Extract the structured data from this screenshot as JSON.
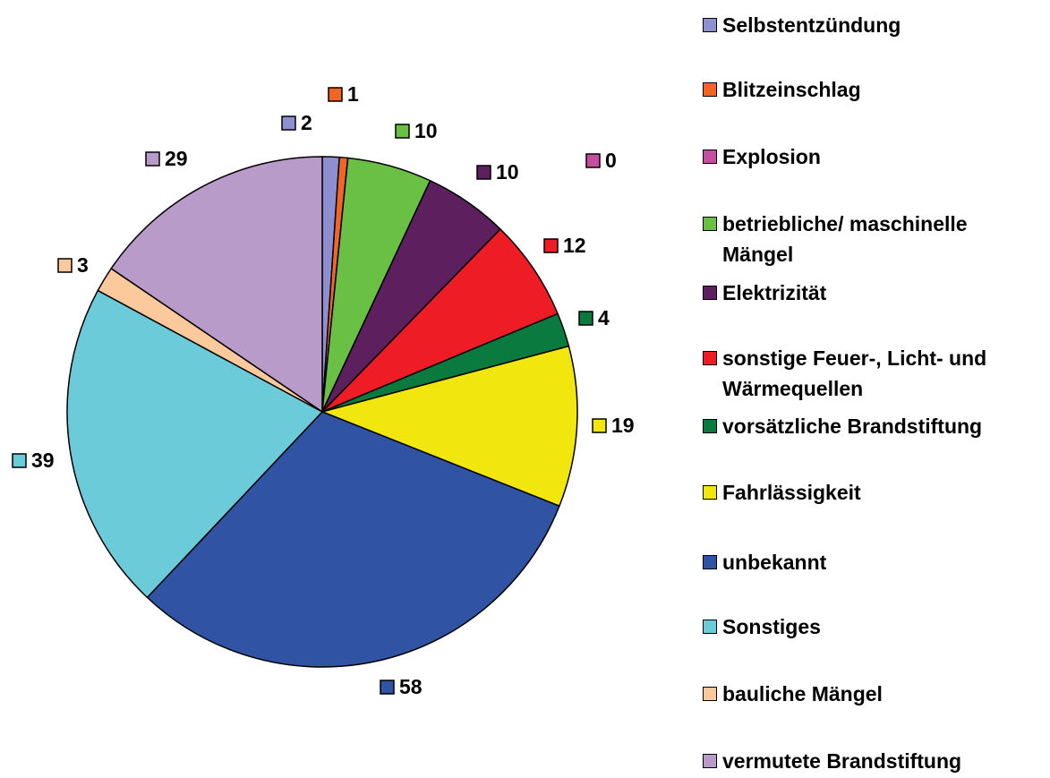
{
  "chart_data": {
    "type": "pie",
    "categories": [
      "Selbstentzündung",
      "Blitzeinschlag",
      "Explosion",
      "betriebliche/ maschinelle Mängel",
      "Elektrizität",
      "sonstige Feuer-, Licht- und Wärmequellen",
      "vorsätzliche Brandstiftung",
      "Fahrlässigkeit",
      "unbekannt",
      "Sonstiges",
      "bauliche Mängel",
      "vermutete Brandstiftung"
    ],
    "values": [
      2,
      1,
      0,
      10,
      10,
      12,
      4,
      19,
      58,
      39,
      3,
      29
    ],
    "colors": [
      "#8e8fd0",
      "#f26522",
      "#c64ea0",
      "#6abf45",
      "#5e1f5e",
      "#ee1c24",
      "#0b7a3e",
      "#f2e60f",
      "#3153a4",
      "#6ccbd9",
      "#fbc99c",
      "#b89bc9"
    ],
    "legend": "right"
  }
}
